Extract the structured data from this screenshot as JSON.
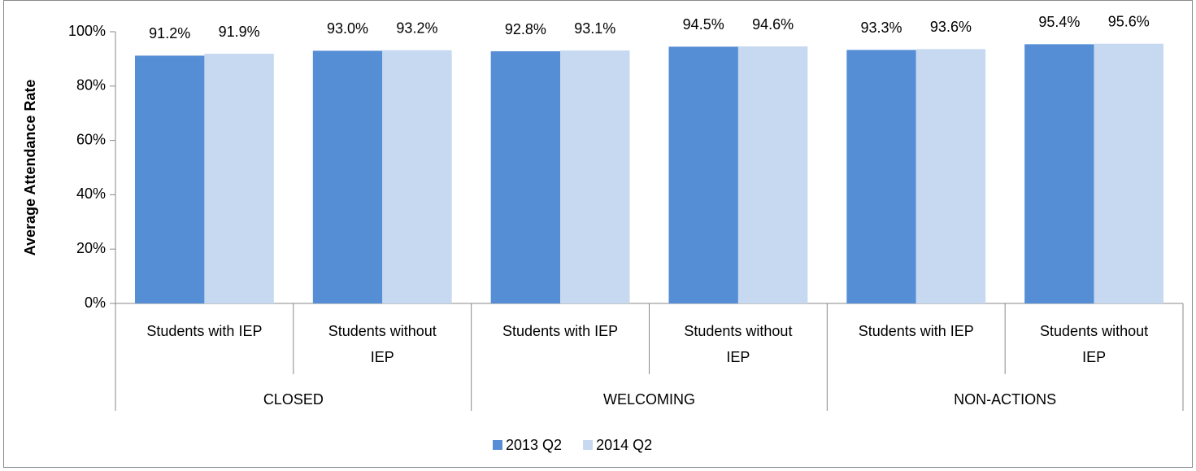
{
  "chart_data": {
    "type": "bar",
    "y_label": "Average Attendance Rate",
    "categories": [
      "Students with IEP",
      "Students without IEP",
      "Students with IEP",
      "Students without IEP",
      "Students with IEP",
      "Students without IEP"
    ],
    "groups": [
      "CLOSED",
      "WELCOMING",
      "NON-ACTIONS"
    ],
    "series": [
      {
        "name": "2013 Q2",
        "color": "#558ed5",
        "values": [
          91.2,
          93.0,
          92.8,
          94.5,
          93.3,
          95.4
        ],
        "value_labels": [
          "91.2%",
          "93.0%",
          "92.8%",
          "94.5%",
          "93.3%",
          "95.4%"
        ]
      },
      {
        "name": "2014 Q2",
        "color": "#c6d9f1",
        "values": [
          91.9,
          93.2,
          93.1,
          94.6,
          93.6,
          95.6
        ],
        "value_labels": [
          "91.9%",
          "93.2%",
          "93.1%",
          "94.6%",
          "93.6%",
          "95.6%"
        ]
      }
    ],
    "ylim": [
      0,
      100
    ],
    "yticks": [
      {
        "value": 0,
        "label": "0%"
      },
      {
        "value": 20,
        "label": "20%"
      },
      {
        "value": 40,
        "label": "40%"
      },
      {
        "value": 60,
        "label": "60%"
      },
      {
        "value": 80,
        "label": "80%"
      },
      {
        "value": 100,
        "label": "100%"
      }
    ],
    "grid": false
  }
}
